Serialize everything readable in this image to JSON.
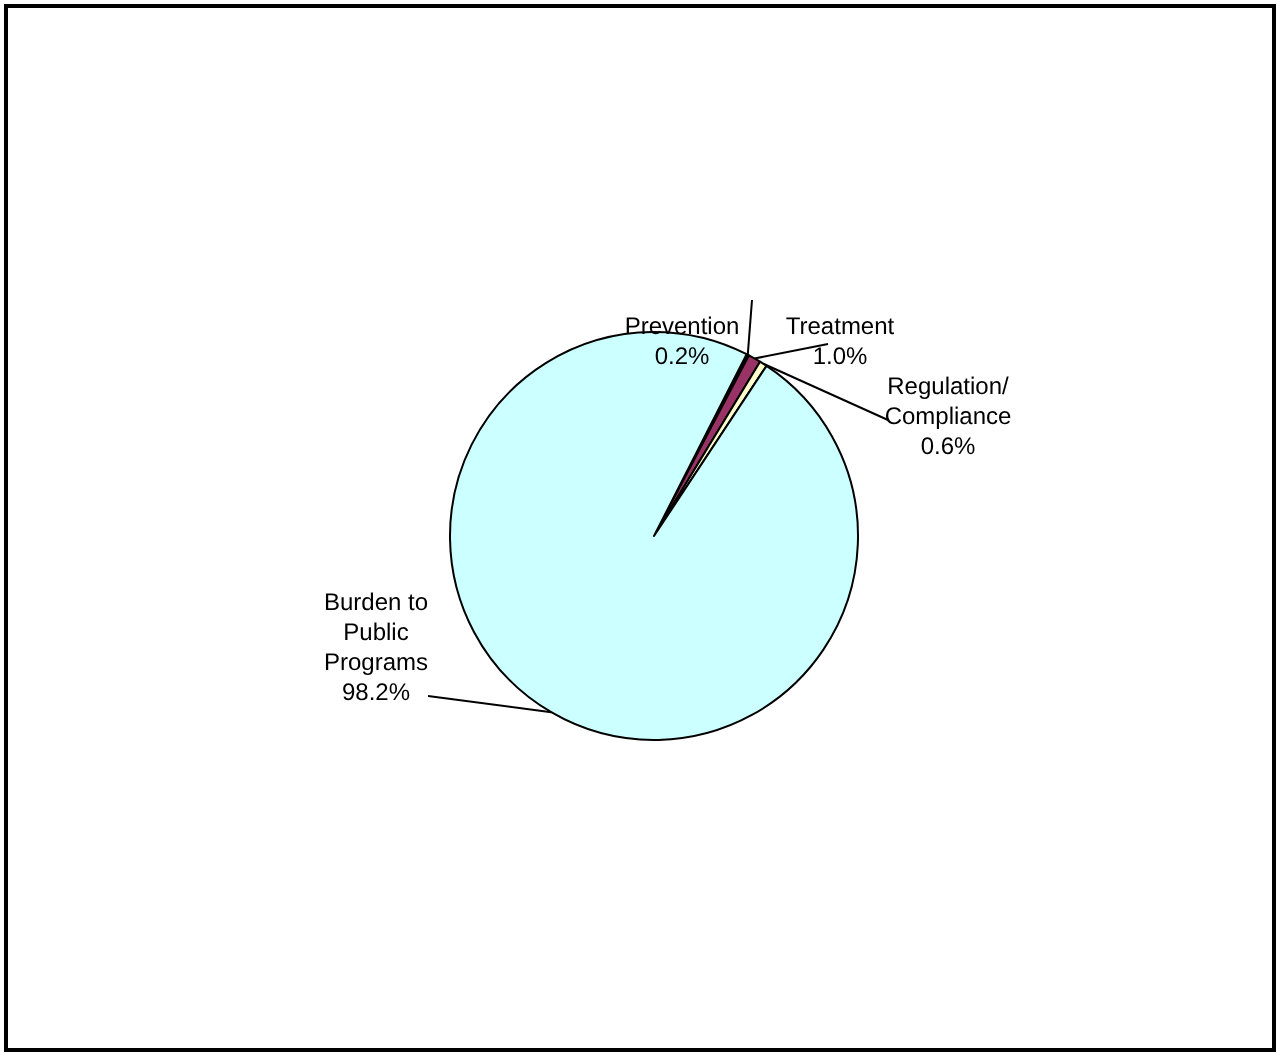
{
  "chart_data": {
    "type": "pie",
    "categories": [
      "Prevention",
      "Treatment",
      "Regulation/Compliance",
      "Burden to Public Programs"
    ],
    "values": [
      0.2,
      1.0,
      0.6,
      98.2
    ],
    "colors": [
      "#000000",
      "#993366",
      "#ffffcc",
      "#ccffff"
    ],
    "value_labels": [
      "0.2%",
      "1.0%",
      "0.6%",
      "98.2%"
    ]
  }
}
